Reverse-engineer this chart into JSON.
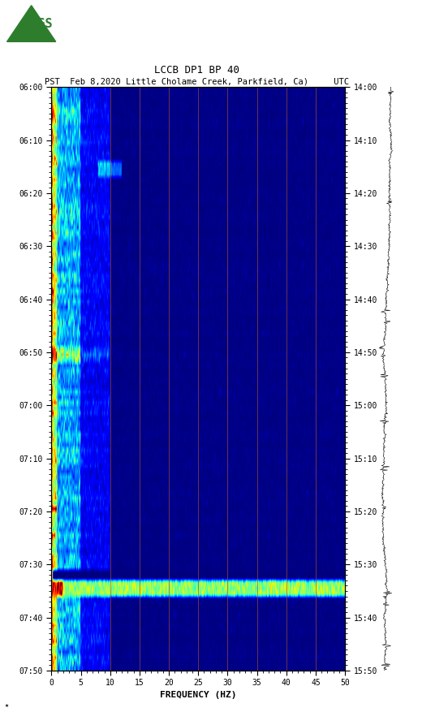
{
  "title_line1": "LCCB DP1 BP 40",
  "title_line2": "PST  Feb 8,2020 Little Cholame Creek, Parkfield, Ca)     UTC",
  "xlabel": "FREQUENCY (HZ)",
  "freq_min": 0,
  "freq_max": 50,
  "left_yticks": [
    "06:00",
    "06:10",
    "06:20",
    "06:30",
    "06:40",
    "06:50",
    "07:00",
    "07:10",
    "07:20",
    "07:30",
    "07:40",
    "07:50"
  ],
  "right_yticks": [
    "14:00",
    "14:10",
    "14:20",
    "14:30",
    "14:40",
    "14:50",
    "15:00",
    "15:10",
    "15:20",
    "15:30",
    "15:40",
    "15:50"
  ],
  "freq_ticks": [
    0,
    5,
    10,
    15,
    20,
    25,
    30,
    35,
    40,
    45,
    50
  ],
  "vline_freqs": [
    10,
    15,
    20,
    25,
    30,
    35,
    40,
    45
  ],
  "vline_color": "#A0522D",
  "spectrogram_cmap": "jet",
  "fig_width": 5.52,
  "fig_height": 8.93,
  "n_time": 110,
  "n_freq": 500,
  "seed": 42
}
